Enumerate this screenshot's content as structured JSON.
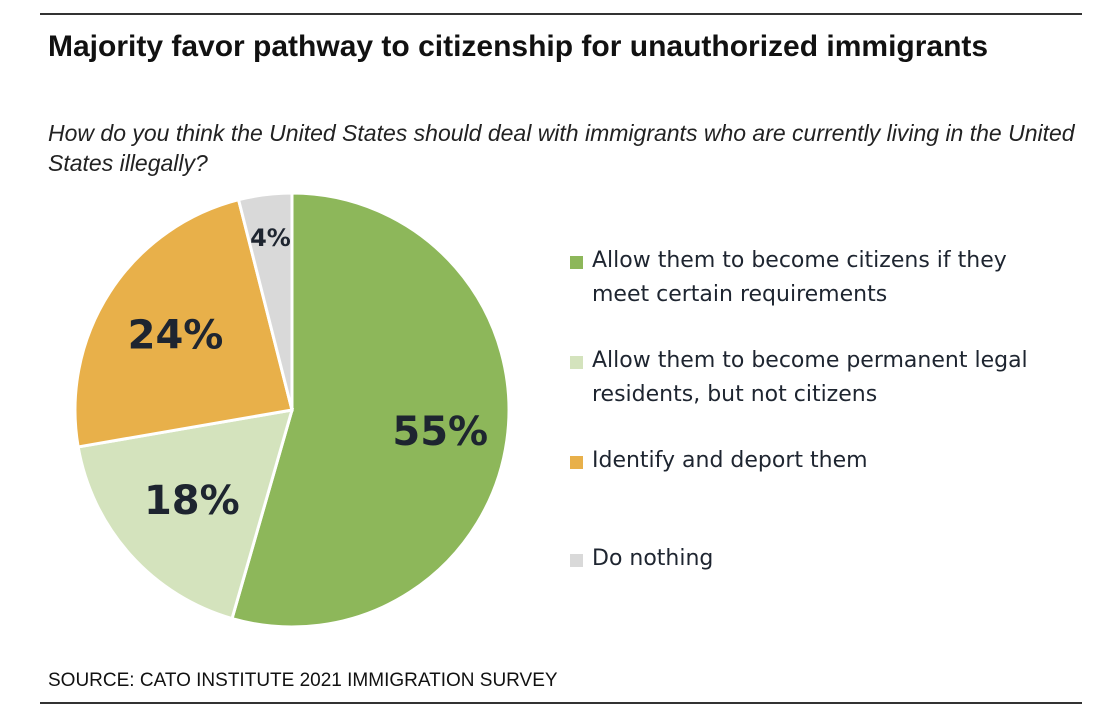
{
  "chart_data": {
    "type": "pie",
    "title": "Majority favor pathway to citizenship for unauthorized immigrants",
    "subtitle": "How do you think the United States should deal with immigrants who are currently living in the United States illegally?",
    "slices": [
      {
        "label": "Allow them to become citizens if they meet certain requirements",
        "value": 55,
        "display": "55%",
        "color": "#8db75a"
      },
      {
        "label": "Allow them to become permanent legal residents, but not citizens",
        "value": 18,
        "display": "18%",
        "color": "#d4e3bd"
      },
      {
        "label": "Identify and deport them",
        "value": 24,
        "display": "24%",
        "color": "#e8b04a"
      },
      {
        "label": "Do nothing",
        "value": 4,
        "display": "4%",
        "color": "#d9d9d9"
      }
    ],
    "start": "top",
    "direction": "clockwise",
    "legend_position": "right",
    "source": "SOURCE: CATO INSTITUTE 2021 IMMIGRATION SURVEY"
  }
}
